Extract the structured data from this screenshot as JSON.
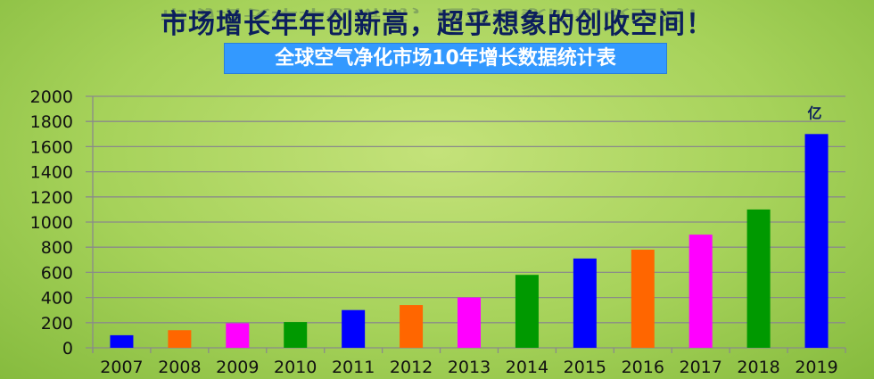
{
  "header": {
    "title": "市场增长年年创新高，超乎想象的创收空间！",
    "subtitle": "全球空气净化市场10年增长数据统计表"
  },
  "chart_data": {
    "type": "bar",
    "title": "全球空气净化市场10年增长数据统计表",
    "unit_label": "亿",
    "categories": [
      "2007",
      "2008",
      "2009",
      "2010",
      "2011",
      "2012",
      "2013",
      "2014",
      "2015",
      "2016",
      "2017",
      "2018",
      "2019"
    ],
    "values": [
      100,
      140,
      195,
      205,
      300,
      340,
      400,
      580,
      710,
      780,
      900,
      1100,
      1700
    ],
    "colors": [
      "#0000ff",
      "#ff6600",
      "#ff00ff",
      "#009900",
      "#0000ff",
      "#ff6600",
      "#ff00ff",
      "#009900",
      "#0000ff",
      "#ff6600",
      "#ff00ff",
      "#009900",
      "#0000ff"
    ],
    "ylim": [
      0,
      2000
    ],
    "yticks": [
      0,
      200,
      400,
      600,
      800,
      1000,
      1200,
      1400,
      1600,
      1800,
      2000
    ],
    "grid": true,
    "xlabel": "",
    "ylabel": ""
  }
}
